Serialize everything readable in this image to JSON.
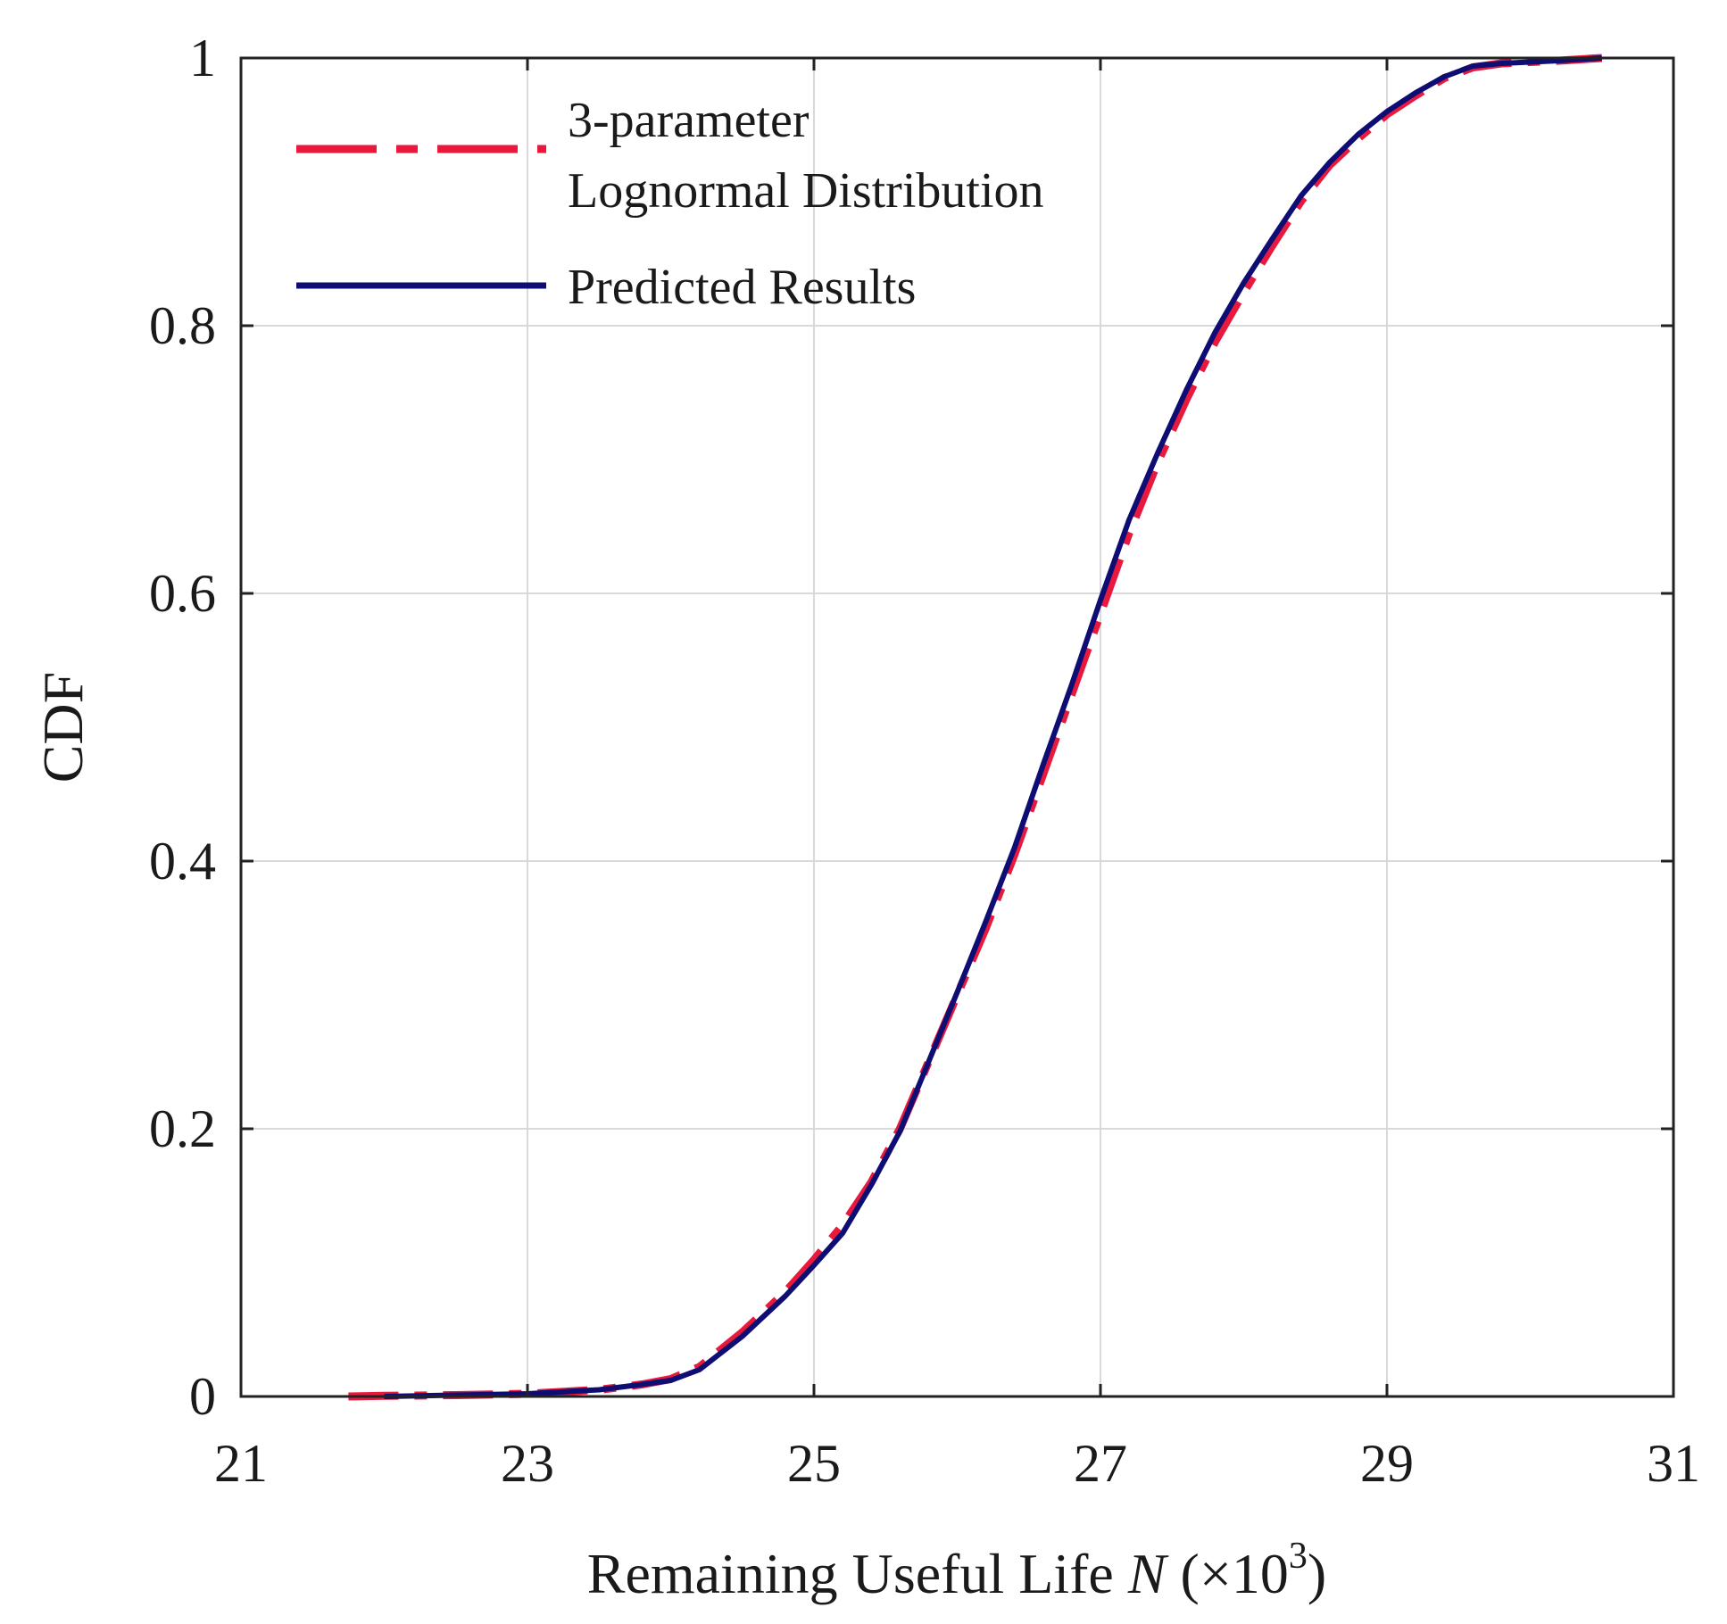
{
  "chart_data": {
    "type": "line",
    "title": "",
    "xlabel": {
      "main": "Remaining Useful Life ",
      "var": "N",
      "paren_open": " (",
      "times": "×10",
      "exp": "3",
      "paren_close": ")"
    },
    "ylabel": "CDF",
    "xlim": [
      21,
      31
    ],
    "ylim": [
      0,
      1
    ],
    "xticks": [
      21,
      23,
      25,
      27,
      29,
      31
    ],
    "xtick_labels": [
      "21",
      "23",
      "25",
      "27",
      "29",
      "31"
    ],
    "yticks": [
      0,
      0.2,
      0.4,
      0.6,
      0.8,
      1
    ],
    "ytick_labels": [
      "0",
      "0.2",
      "0.4",
      "0.6",
      "0.8",
      "1"
    ],
    "grid": true,
    "legend_position": "top-left",
    "series": [
      {
        "name": "3-parameter",
        "name_line2": "Lognormal Distribution",
        "color": "#e8193c",
        "style": "dashdot",
        "x": [
          21.75,
          22.0,
          22.5,
          23.0,
          23.5,
          23.8,
          24.0,
          24.2,
          24.5,
          24.8,
          25.0,
          25.2,
          25.4,
          25.6,
          25.8,
          26.0,
          26.2,
          26.4,
          26.6,
          26.8,
          27.0,
          27.2,
          27.4,
          27.6,
          27.8,
          28.0,
          28.2,
          28.4,
          28.6,
          28.8,
          29.0,
          29.2,
          29.4,
          29.6,
          29.8,
          30.0,
          30.2,
          30.5
        ],
        "y": [
          0.0,
          0.0005,
          0.001,
          0.002,
          0.005,
          0.009,
          0.013,
          0.022,
          0.048,
          0.078,
          0.102,
          0.128,
          0.16,
          0.2,
          0.25,
          0.3,
          0.35,
          0.405,
          0.465,
          0.525,
          0.585,
          0.645,
          0.698,
          0.745,
          0.788,
          0.825,
          0.86,
          0.893,
          0.92,
          0.94,
          0.958,
          0.972,
          0.985,
          0.993,
          0.996,
          0.997,
          0.998,
          1.0
        ]
      },
      {
        "name": "Predicted Results",
        "color": "#0d0d73",
        "style": "solid",
        "x": [
          22.0,
          22.5,
          23.0,
          23.5,
          23.8,
          24.0,
          24.2,
          24.5,
          24.8,
          25.0,
          25.2,
          25.4,
          25.6,
          25.8,
          26.0,
          26.2,
          26.4,
          26.6,
          26.8,
          27.0,
          27.2,
          27.4,
          27.6,
          27.8,
          28.0,
          28.2,
          28.4,
          28.6,
          28.8,
          29.0,
          29.2,
          29.4,
          29.6,
          29.8,
          30.0,
          30.2,
          30.5
        ],
        "y": [
          0.0,
          0.001,
          0.002,
          0.005,
          0.009,
          0.012,
          0.02,
          0.045,
          0.075,
          0.098,
          0.122,
          0.158,
          0.198,
          0.25,
          0.302,
          0.355,
          0.41,
          0.472,
          0.532,
          0.595,
          0.655,
          0.705,
          0.752,
          0.795,
          0.832,
          0.865,
          0.897,
          0.922,
          0.943,
          0.96,
          0.974,
          0.986,
          0.994,
          0.996,
          0.997,
          0.998,
          1.0
        ]
      }
    ]
  }
}
